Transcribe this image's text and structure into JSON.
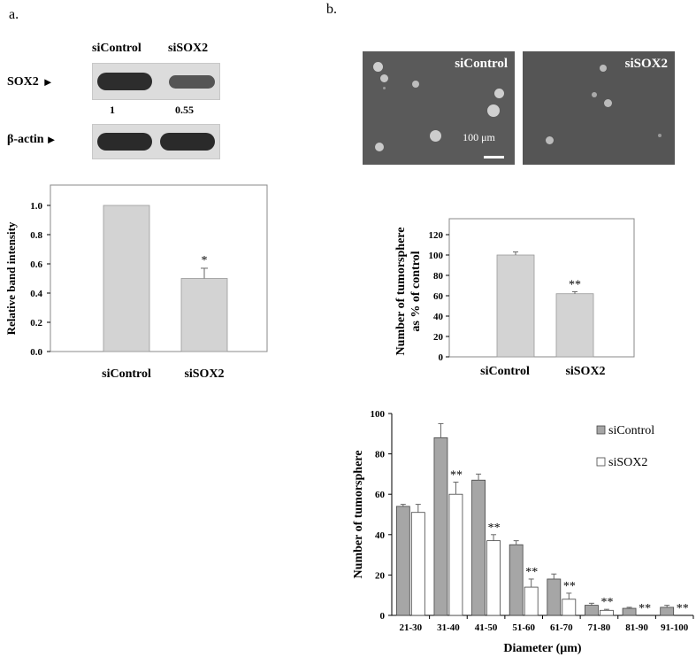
{
  "panel_a": {
    "letter": "a.",
    "blot": {
      "lane_labels": [
        "siControl",
        "siSOX2"
      ],
      "sox2_label": "SOX2",
      "actin_label": "β-actin",
      "ratios": [
        "1",
        "0.55"
      ]
    }
  },
  "panel_b": {
    "letter": "b.",
    "micrographs": {
      "left_label": "siControl",
      "right_label": "siSOX2",
      "scale_text": "100 μm"
    }
  },
  "chart_data": [
    {
      "id": "band-intensity",
      "type": "bar",
      "categories": [
        "siControl",
        "siSOX2"
      ],
      "values": [
        1.0,
        0.5
      ],
      "errors": [
        0,
        0.07
      ],
      "significance": [
        "",
        "*"
      ],
      "ylabel": "Relative band intensity",
      "ylim": [
        0,
        1.0
      ],
      "yticks": [
        "0.0",
        "0.2",
        "0.4",
        "0.6",
        "0.8",
        "1.0"
      ],
      "color": "#d3d3d3"
    },
    {
      "id": "tumorsphere-percent",
      "type": "bar",
      "categories": [
        "siControl",
        "siSOX2"
      ],
      "values": [
        100,
        62
      ],
      "errors": [
        3,
        2
      ],
      "significance": [
        "",
        "**"
      ],
      "ylabel_lines": [
        "Number of tumorsphere",
        "as % of control"
      ],
      "ylim": [
        0,
        120
      ],
      "yticks": [
        "0",
        "20",
        "40",
        "60",
        "80",
        "100",
        "120"
      ],
      "color": "#d3d3d3"
    },
    {
      "id": "diameter-distribution",
      "type": "bar",
      "categories": [
        "21-30",
        "31-40",
        "41-50",
        "51-60",
        "61-70",
        "71-80",
        "81-90",
        "91-100"
      ],
      "series": [
        {
          "name": "siControl",
          "values": [
            54,
            88,
            67,
            35,
            18,
            5,
            3.5,
            4
          ],
          "errors": [
            1,
            7,
            3,
            2,
            2.5,
            1,
            0.5,
            1
          ],
          "color": "#a6a6a6"
        },
        {
          "name": "siSOX2",
          "values": [
            51,
            60,
            37,
            14,
            8,
            2.5,
            0,
            0
          ],
          "errors": [
            4,
            6,
            3,
            4,
            3,
            0.5,
            0,
            0
          ],
          "color": "#ffffff"
        }
      ],
      "significance": [
        "",
        "**",
        "**",
        "**",
        "**",
        "**",
        "**",
        "**"
      ],
      "xlabel": "Diameter (μm)",
      "ylabel": "Number of tumorsphere",
      "ylim": [
        0,
        100
      ],
      "yticks": [
        "0",
        "20",
        "40",
        "60",
        "80",
        "100"
      ],
      "legend_position": "top-right"
    }
  ]
}
